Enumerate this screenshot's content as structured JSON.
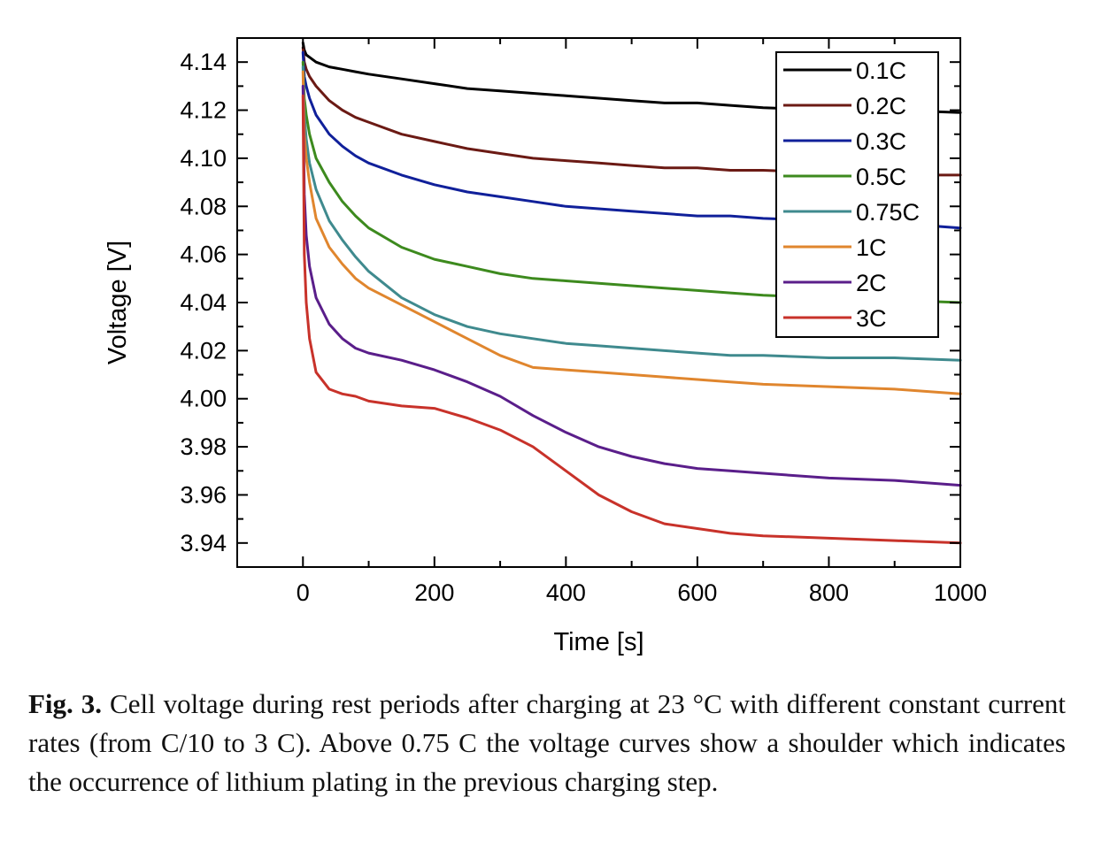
{
  "figure": {
    "caption_label": "Fig. 3.",
    "caption_text": "Cell voltage during rest periods after charging at 23 °C with different constant current rates (from C/10 to 3 C). Above 0.75 C the voltage curves show a shoulder which indicates the occurrence of lithium plating in the previous charging step."
  },
  "chart_data": {
    "type": "line",
    "xlabel": "Time [s]",
    "ylabel": "Voltage [V]",
    "xlim": [
      -100,
      1000
    ],
    "ylim": [
      3.93,
      4.15
    ],
    "xticks": [
      0,
      200,
      400,
      600,
      800,
      1000
    ],
    "yticks": [
      3.94,
      3.96,
      3.98,
      4.0,
      4.02,
      4.04,
      4.06,
      4.08,
      4.1,
      4.12,
      4.14
    ],
    "ytick_labels": [
      "3.94",
      "3.96",
      "3.98",
      "4.00",
      "4.02",
      "4.04",
      "4.06",
      "4.08",
      "4.10",
      "4.12",
      "4.14"
    ],
    "grid": false,
    "legend_position": "top-right",
    "x": [
      0,
      2,
      5,
      10,
      20,
      40,
      60,
      80,
      100,
      150,
      200,
      250,
      300,
      350,
      400,
      450,
      500,
      550,
      600,
      650,
      700,
      800,
      900,
      1000
    ],
    "series": [
      {
        "name": "0.1C",
        "color": "#000000",
        "values": [
          4.148,
          4.145,
          4.143,
          4.142,
          4.14,
          4.138,
          4.137,
          4.136,
          4.135,
          4.133,
          4.131,
          4.129,
          4.128,
          4.127,
          4.126,
          4.125,
          4.124,
          4.123,
          4.123,
          4.122,
          4.121,
          4.12,
          4.12,
          4.119
        ]
      },
      {
        "name": "0.2C",
        "color": "#6b1a14",
        "values": [
          4.146,
          4.14,
          4.137,
          4.134,
          4.13,
          4.124,
          4.12,
          4.117,
          4.115,
          4.11,
          4.107,
          4.104,
          4.102,
          4.1,
          4.099,
          4.098,
          4.097,
          4.096,
          4.096,
          4.095,
          4.095,
          4.094,
          4.093,
          4.093
        ]
      },
      {
        "name": "0.3C",
        "color": "#10209a",
        "values": [
          4.144,
          4.134,
          4.13,
          4.125,
          4.118,
          4.11,
          4.105,
          4.101,
          4.098,
          4.093,
          4.089,
          4.086,
          4.084,
          4.082,
          4.08,
          4.079,
          4.078,
          4.077,
          4.076,
          4.076,
          4.075,
          4.074,
          4.073,
          4.071
        ]
      },
      {
        "name": "0.5C",
        "color": "#3d8a1e",
        "values": [
          4.14,
          4.125,
          4.118,
          4.11,
          4.1,
          4.09,
          4.082,
          4.076,
          4.071,
          4.063,
          4.058,
          4.055,
          4.052,
          4.05,
          4.049,
          4.048,
          4.047,
          4.046,
          4.045,
          4.044,
          4.043,
          4.042,
          4.041,
          4.04
        ]
      },
      {
        "name": "0.75C",
        "color": "#3f8a8e",
        "values": [
          4.138,
          4.118,
          4.108,
          4.098,
          4.087,
          4.074,
          4.066,
          4.059,
          4.053,
          4.042,
          4.035,
          4.03,
          4.027,
          4.025,
          4.023,
          4.022,
          4.021,
          4.02,
          4.019,
          4.018,
          4.018,
          4.017,
          4.017,
          4.016
        ]
      },
      {
        "name": "1C",
        "color": "#e0862e",
        "values": [
          4.136,
          4.11,
          4.1,
          4.09,
          4.075,
          4.063,
          4.056,
          4.05,
          4.046,
          4.039,
          4.032,
          4.025,
          4.018,
          4.013,
          4.012,
          4.011,
          4.01,
          4.009,
          4.008,
          4.007,
          4.006,
          4.005,
          4.004,
          4.002
        ]
      },
      {
        "name": "2C",
        "color": "#5a1e8a",
        "values": [
          4.13,
          4.085,
          4.068,
          4.055,
          4.042,
          4.031,
          4.025,
          4.021,
          4.019,
          4.016,
          4.012,
          4.007,
          4.001,
          3.993,
          3.986,
          3.98,
          3.976,
          3.973,
          3.971,
          3.97,
          3.969,
          3.967,
          3.966,
          3.964
        ]
      },
      {
        "name": "3C",
        "color": "#c8322a",
        "values": [
          4.126,
          4.06,
          4.04,
          4.025,
          4.011,
          4.004,
          4.002,
          4.001,
          3.999,
          3.997,
          3.996,
          3.992,
          3.987,
          3.98,
          3.97,
          3.96,
          3.953,
          3.948,
          3.946,
          3.944,
          3.943,
          3.942,
          3.941,
          3.94
        ]
      }
    ]
  }
}
